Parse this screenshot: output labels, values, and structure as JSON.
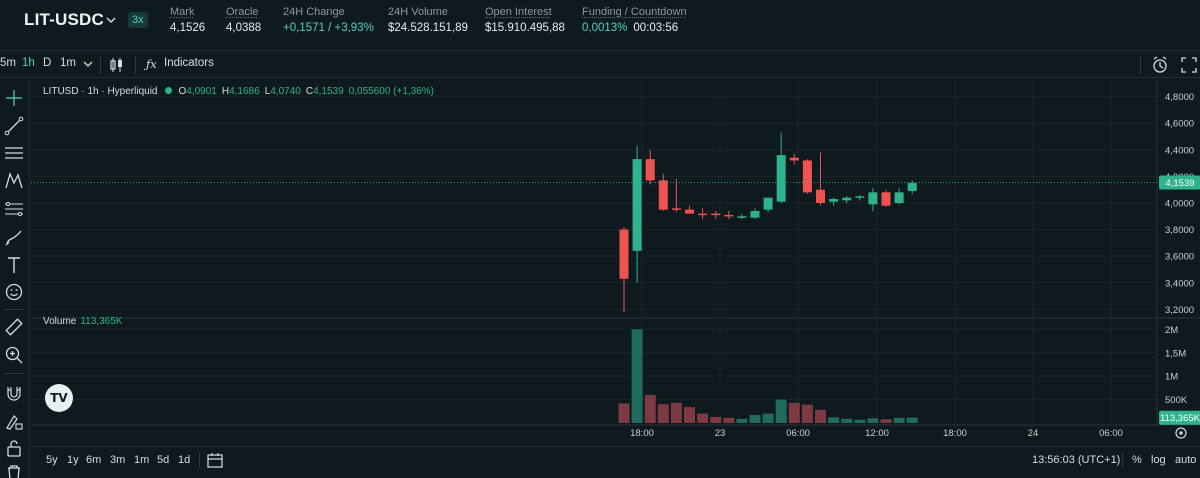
{
  "market": {
    "pair": "LIT-USDC",
    "leverage": "3x",
    "stats": [
      {
        "label": "Mark",
        "value": "4,1526",
        "green": false,
        "dotted": true
      },
      {
        "label": "Oracle",
        "value": "4,0388",
        "green": false,
        "dotted": true
      },
      {
        "label": "24H Change",
        "value": "+0,1571 / +3,93%",
        "green": true,
        "dotted": false
      },
      {
        "label": "24H Volume",
        "value": "$24.528.151,89",
        "green": false,
        "dotted": false
      },
      {
        "label": "Open Interest",
        "value": "$15.910.495,88",
        "green": false,
        "dotted": true
      },
      {
        "label": "Funding / Countdown",
        "value": "0,0013%",
        "green": true,
        "dotted": true
      }
    ],
    "countdown": "00:03:56"
  },
  "toolbar": {
    "intervals": [
      "5m",
      "1h",
      "D",
      "1m"
    ],
    "active_interval": "1h",
    "indicators_label": "Indicators"
  },
  "legend": {
    "symbol": "LITUSD · 1h · Hyperliquid",
    "o_label": "O",
    "o_value": "4,0901",
    "h_label": "H",
    "h_value": "4,1686",
    "l_label": "L",
    "l_value": "4,0740",
    "c_label": "C",
    "c_value": "4,1539",
    "change": "0,055600 (+1,36%)"
  },
  "volume_legend": {
    "label": "Volume",
    "value": "113,365K"
  },
  "tv_logo": "TV",
  "chart_data": {
    "type": "candlestick",
    "price_axis": {
      "ticks": [
        "4,8000",
        "4,6000",
        "4,4000",
        "4,2000",
        "4,0000",
        "3,8000",
        "3,6000",
        "3,4000",
        "3,2000"
      ],
      "range": [
        3.15,
        4.85
      ]
    },
    "volume_axis": {
      "ticks": [
        "2M",
        "1,5M",
        "1M",
        "500K"
      ],
      "range": [
        0,
        2200000
      ]
    },
    "time_labels": [
      "18:00",
      "23",
      "06:00",
      "12:00",
      "18:00",
      "24",
      "06:00"
    ],
    "last_price": "4,1539",
    "last_volume": "113,365K",
    "candles": [
      {
        "o": 3.8,
        "h": 3.82,
        "l": 3.18,
        "c": 3.43,
        "v": 420000
      },
      {
        "o": 3.64,
        "h": 4.43,
        "l": 3.4,
        "c": 4.33,
        "v": 2000000
      },
      {
        "o": 4.33,
        "h": 4.4,
        "l": 4.14,
        "c": 4.17,
        "v": 600000
      },
      {
        "o": 4.17,
        "h": 4.22,
        "l": 3.94,
        "c": 3.95,
        "v": 400000
      },
      {
        "o": 3.96,
        "h": 4.18,
        "l": 3.93,
        "c": 3.95,
        "v": 430000
      },
      {
        "o": 3.95,
        "h": 3.98,
        "l": 3.92,
        "c": 3.92,
        "v": 340000
      },
      {
        "o": 3.92,
        "h": 3.96,
        "l": 3.88,
        "c": 3.91,
        "v": 200000
      },
      {
        "o": 3.92,
        "h": 3.94,
        "l": 3.88,
        "c": 3.91,
        "v": 130000
      },
      {
        "o": 3.91,
        "h": 3.94,
        "l": 3.88,
        "c": 3.9,
        "v": 110000
      },
      {
        "o": 3.89,
        "h": 3.92,
        "l": 3.88,
        "c": 3.9,
        "v": 90000
      },
      {
        "o": 3.89,
        "h": 3.96,
        "l": 3.88,
        "c": 3.94,
        "v": 170000
      },
      {
        "o": 3.95,
        "h": 4.04,
        "l": 3.93,
        "c": 4.04,
        "v": 200000
      },
      {
        "o": 4.01,
        "h": 4.53,
        "l": 4.0,
        "c": 4.36,
        "v": 500000
      },
      {
        "o": 4.34,
        "h": 4.37,
        "l": 4.29,
        "c": 4.32,
        "v": 430000
      },
      {
        "o": 4.32,
        "h": 4.33,
        "l": 4.07,
        "c": 4.08,
        "v": 390000
      },
      {
        "o": 4.1,
        "h": 4.38,
        "l": 3.98,
        "c": 4.0,
        "v": 280000
      },
      {
        "o": 4.01,
        "h": 4.04,
        "l": 3.98,
        "c": 4.03,
        "v": 120000
      },
      {
        "o": 4.02,
        "h": 4.05,
        "l": 4.0,
        "c": 4.04,
        "v": 90000
      },
      {
        "o": 4.04,
        "h": 4.06,
        "l": 4.02,
        "c": 4.05,
        "v": 70000
      },
      {
        "o": 3.99,
        "h": 4.11,
        "l": 3.94,
        "c": 4.08,
        "v": 100000
      },
      {
        "o": 4.08,
        "h": 4.1,
        "l": 3.97,
        "c": 3.98,
        "v": 80000
      },
      {
        "o": 4.0,
        "h": 4.11,
        "l": 3.99,
        "c": 4.08,
        "v": 110000
      },
      {
        "o": 4.09,
        "h": 4.17,
        "l": 4.07,
        "c": 4.15,
        "v": 113365
      }
    ]
  },
  "bottom": {
    "ranges": [
      "5y",
      "1y",
      "6m",
      "3m",
      "1m",
      "5d",
      "1d"
    ],
    "time": "13:56:03 (UTC+1)",
    "pct": "%",
    "log": "log",
    "auto": "auto"
  },
  "colors": {
    "up": "#2fb38d",
    "down": "#ef5350",
    "up_vol": "#1f6b5c",
    "down_vol": "#7e3a41",
    "background": "#0f1a1f"
  }
}
